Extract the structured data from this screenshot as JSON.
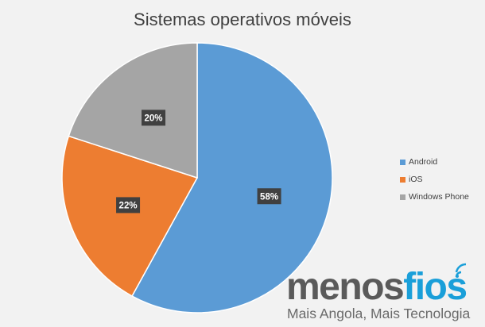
{
  "chart_data": {
    "type": "pie",
    "title": "Sistemas operativos móveis",
    "categories": [
      "Android",
      "iOS",
      "Windows Phone"
    ],
    "values": [
      58,
      22,
      20
    ],
    "data_labels": [
      "58%",
      "22%",
      "20%"
    ],
    "colors": [
      "#5b9bd5",
      "#ed7d31",
      "#a5a5a5"
    ],
    "start_angle_deg": 0,
    "direction": "clockwise",
    "legend_position": "right"
  },
  "watermark": {
    "logo_part1": "menos",
    "logo_part2": "fios",
    "tagline": "Mais Angola, Mais Tecnologia",
    "icon": "wifi-signal-icon",
    "logo_color": "#1a9fd9"
  }
}
